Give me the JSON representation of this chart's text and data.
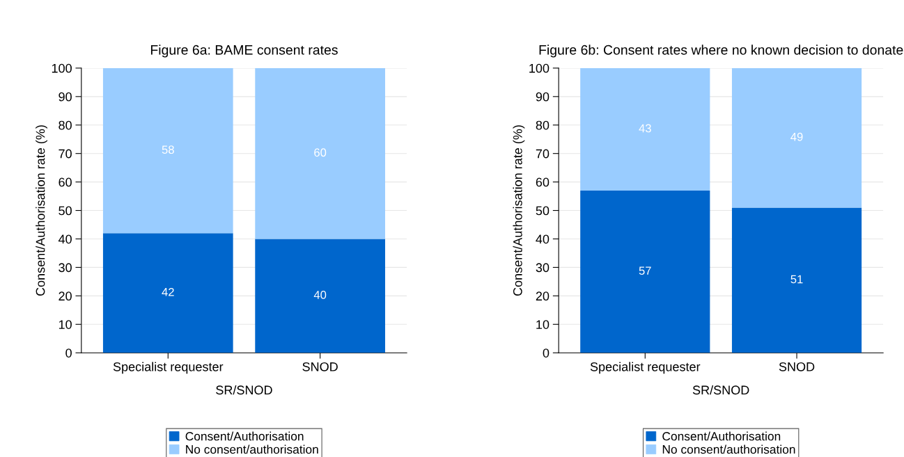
{
  "chart_data": [
    {
      "type": "bar",
      "title": "Figure 6a: BAME consent rates",
      "xlabel": "SR/SNOD",
      "ylabel": "Consent/Authorisation rate (%)",
      "categories": [
        "Specialist requester",
        "SNOD"
      ],
      "stacked": true,
      "ylim": [
        0,
        100
      ],
      "yticks": [
        0,
        10,
        20,
        30,
        40,
        50,
        60,
        70,
        80,
        90,
        100
      ],
      "grid": "y",
      "legend": "bottom",
      "data_labels": true,
      "series": [
        {
          "name": "Consent/Authorisation",
          "color": "#0066cc",
          "values": [
            42,
            40
          ]
        },
        {
          "name": "No consent/authorisation",
          "color": "#99ccff",
          "values": [
            58,
            60
          ]
        }
      ]
    },
    {
      "type": "bar",
      "title": "Figure 6b: Consent rates where no known decision to donate",
      "xlabel": "SR/SNOD",
      "ylabel": "Consent/Authorisation rate (%)",
      "categories": [
        "Specialist requester",
        "SNOD"
      ],
      "stacked": true,
      "ylim": [
        0,
        100
      ],
      "yticks": [
        0,
        10,
        20,
        30,
        40,
        50,
        60,
        70,
        80,
        90,
        100
      ],
      "grid": "y",
      "legend": "bottom",
      "data_labels": true,
      "series": [
        {
          "name": "Consent/Authorisation",
          "color": "#0066cc",
          "values": [
            57,
            51
          ]
        },
        {
          "name": "No consent/authorisation",
          "color": "#99ccff",
          "values": [
            43,
            49
          ]
        }
      ]
    }
  ]
}
